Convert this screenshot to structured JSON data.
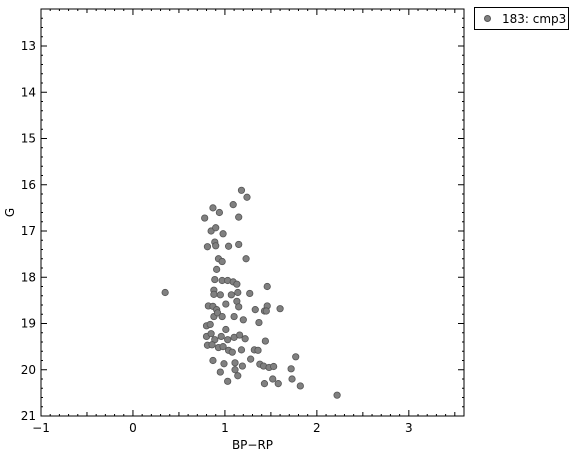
{
  "chart_data": {
    "type": "scatter",
    "xlabel": "BP−RP",
    "ylabel": "G",
    "xlim": [
      -1,
      3.6
    ],
    "ylim": [
      21,
      12.2
    ],
    "y_inverted": true,
    "xticks": [
      -1,
      0,
      1,
      2,
      3
    ],
    "xtick_labels": [
      "−1",
      "0",
      "1",
      "2",
      "3"
    ],
    "yticks": [
      13,
      14,
      15,
      16,
      17,
      18,
      19,
      20,
      21
    ],
    "ytick_labels": [
      "13",
      "14",
      "15",
      "16",
      "17",
      "18",
      "19",
      "20",
      "21"
    ],
    "grid": false,
    "legend_position": "top-right, outside plot",
    "marker_color": "#808080",
    "series": [
      {
        "name": "183: cmp3",
        "points": [
          [
            0.35,
            18.33
          ],
          [
            0.78,
            16.72
          ],
          [
            0.87,
            16.5
          ],
          [
            0.94,
            16.6
          ],
          [
            1.09,
            16.43
          ],
          [
            1.18,
            16.12
          ],
          [
            1.24,
            16.27
          ],
          [
            0.85,
            17.0
          ],
          [
            0.9,
            16.93
          ],
          [
            0.98,
            17.06
          ],
          [
            0.81,
            17.34
          ],
          [
            0.89,
            17.24
          ],
          [
            0.9,
            17.32
          ],
          [
            1.04,
            17.33
          ],
          [
            1.15,
            17.29
          ],
          [
            1.15,
            16.7
          ],
          [
            0.93,
            17.6
          ],
          [
            0.97,
            17.66
          ],
          [
            1.23,
            17.6
          ],
          [
            0.91,
            17.83
          ],
          [
            0.89,
            18.05
          ],
          [
            0.97,
            18.07
          ],
          [
            1.03,
            18.07
          ],
          [
            1.09,
            18.1
          ],
          [
            1.13,
            18.15
          ],
          [
            0.88,
            18.28
          ],
          [
            0.88,
            18.37
          ],
          [
            0.95,
            18.38
          ],
          [
            1.07,
            18.38
          ],
          [
            1.14,
            18.33
          ],
          [
            1.27,
            18.35
          ],
          [
            1.46,
            18.2
          ],
          [
            0.82,
            18.62
          ],
          [
            0.87,
            18.63
          ],
          [
            0.91,
            18.7
          ],
          [
            1.01,
            18.58
          ],
          [
            1.13,
            18.52
          ],
          [
            1.15,
            18.64
          ],
          [
            1.33,
            18.7
          ],
          [
            1.43,
            18.73
          ],
          [
            1.46,
            18.62
          ],
          [
            1.6,
            18.68
          ],
          [
            0.8,
            19.05
          ],
          [
            0.84,
            19.02
          ],
          [
            0.88,
            18.85
          ],
          [
            0.92,
            18.77
          ],
          [
            0.97,
            18.85
          ],
          [
            1.01,
            19.13
          ],
          [
            1.1,
            18.85
          ],
          [
            1.2,
            18.92
          ],
          [
            1.37,
            18.98
          ],
          [
            1.45,
            18.73
          ],
          [
            0.8,
            19.28
          ],
          [
            0.85,
            19.22
          ],
          [
            0.89,
            19.35
          ],
          [
            0.96,
            19.28
          ],
          [
            1.03,
            19.35
          ],
          [
            1.1,
            19.3
          ],
          [
            1.16,
            19.25
          ],
          [
            1.22,
            19.33
          ],
          [
            0.81,
            19.47
          ],
          [
            0.86,
            19.46
          ],
          [
            0.93,
            19.52
          ],
          [
            0.98,
            19.5
          ],
          [
            1.04,
            19.58
          ],
          [
            1.08,
            19.62
          ],
          [
            1.18,
            19.57
          ],
          [
            1.32,
            19.57
          ],
          [
            1.36,
            19.58
          ],
          [
            1.44,
            19.38
          ],
          [
            0.87,
            19.8
          ],
          [
            0.99,
            19.87
          ],
          [
            1.11,
            19.85
          ],
          [
            1.19,
            19.92
          ],
          [
            1.28,
            19.77
          ],
          [
            1.38,
            19.88
          ],
          [
            1.42,
            19.92
          ],
          [
            1.48,
            19.95
          ],
          [
            1.53,
            19.93
          ],
          [
            1.77,
            19.72
          ],
          [
            0.95,
            20.05
          ],
          [
            1.03,
            20.25
          ],
          [
            1.11,
            20.0
          ],
          [
            1.14,
            20.13
          ],
          [
            1.43,
            20.3
          ],
          [
            1.52,
            20.2
          ],
          [
            1.58,
            20.3
          ],
          [
            1.72,
            19.98
          ],
          [
            1.73,
            20.2
          ],
          [
            1.82,
            20.35
          ],
          [
            2.22,
            20.55
          ]
        ]
      }
    ]
  }
}
